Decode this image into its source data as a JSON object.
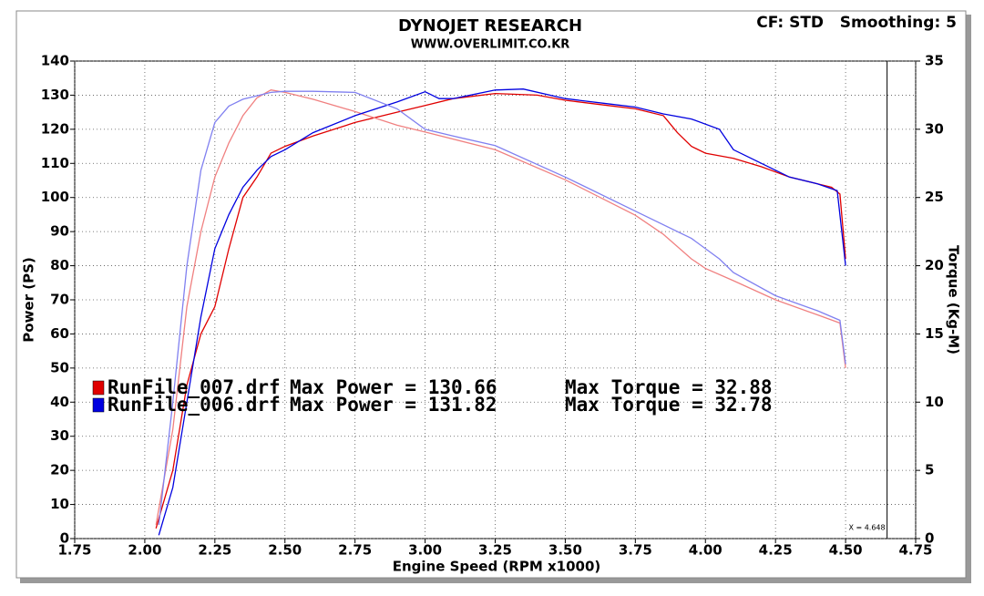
{
  "chart_data": {
    "type": "line",
    "title": "DYNOJET RESEARCH",
    "subtitle": "WWW.OVERLIMIT.CO.KR",
    "settings_text": "CF: STD   Smoothing: 5",
    "x_label": "Engine Speed (RPM x1000)",
    "y_label": "Power (PS)",
    "y2_label": "Torque (Kg-M)",
    "xlim": [
      1.75,
      4.75
    ],
    "xticks": [
      1.75,
      {
        "value": 2,
        "label": "2.00"
      },
      2.25,
      {
        "value": 2.5,
        "label": "2.50"
      },
      2.75,
      {
        "value": 3,
        "label": "3.00"
      },
      3.25,
      {
        "value": 3.5,
        "label": "3.50"
      },
      3.75,
      {
        "value": 4,
        "label": "4.00"
      },
      4.25,
      {
        "value": 4.5,
        "label": "4.50"
      },
      4.75
    ],
    "ylim": [
      0,
      140
    ],
    "yticks": [
      0,
      10,
      20,
      30,
      40,
      50,
      60,
      70,
      80,
      90,
      100,
      110,
      120,
      130,
      140
    ],
    "y2lim": [
      0,
      35
    ],
    "y2ticks": [
      0,
      5,
      10,
      15,
      20,
      25,
      30,
      35
    ],
    "grid": true,
    "cursor": {
      "value": 4.648,
      "label": "X = 4.648"
    },
    "legend": [
      {
        "file": "RunFile_007.drf",
        "max_power": "Max Power = 130.66",
        "max_torque": "Max Torque = 32.88",
        "color": "#e00000"
      },
      {
        "file": "RunFile_006.drf",
        "max_power": "Max Power = 131.82",
        "max_torque": "Max Torque = 32.78",
        "color": "#0000e0"
      }
    ],
    "series": [
      {
        "name": "RunFile_007.drf",
        "color": "#e00000",
        "x": [
          2.04,
          2.1,
          2.15,
          2.2,
          2.25,
          2.3,
          2.35,
          2.4,
          2.45,
          2.5,
          2.6,
          2.75,
          2.9,
          3.0,
          3.1,
          3.25,
          3.4,
          3.5,
          3.65,
          3.75,
          3.85,
          3.9,
          3.95,
          4.0,
          4.1,
          4.2,
          4.3,
          4.4,
          4.45,
          4.48,
          4.5
        ],
        "values": [
          3,
          20,
          45,
          60,
          68,
          85,
          100,
          106,
          113,
          115,
          118,
          122,
          125,
          127,
          129,
          130.5,
          130,
          128.5,
          127,
          126,
          124,
          119,
          115,
          113,
          111.5,
          109,
          106,
          104,
          103,
          101,
          82
        ]
      },
      {
        "name": "RunFile_007.drf",
        "color": "#f08080",
        "axis": "y2",
        "x": [
          2.04,
          2.1,
          2.15,
          2.2,
          2.25,
          2.3,
          2.35,
          2.4,
          2.45,
          2.5,
          2.6,
          2.75,
          2.9,
          3.0,
          3.25,
          3.5,
          3.75,
          3.85,
          3.95,
          4.0,
          4.1,
          4.25,
          4.4,
          4.48,
          4.5
        ],
        "values": [
          1,
          8,
          17,
          22.5,
          26.5,
          29,
          31,
          32.3,
          32.88,
          32.7,
          32.2,
          31.3,
          30.3,
          29.8,
          28.5,
          26.3,
          23.7,
          22.3,
          20.5,
          19.8,
          18.9,
          17.5,
          16.4,
          15.8,
          12.5
        ]
      },
      {
        "name": "RunFile_006.drf",
        "color": "#0000e0",
        "x": [
          2.05,
          2.1,
          2.15,
          2.2,
          2.25,
          2.3,
          2.35,
          2.4,
          2.45,
          2.5,
          2.6,
          2.75,
          2.9,
          3.0,
          3.05,
          3.1,
          3.25,
          3.35,
          3.5,
          3.65,
          3.75,
          3.85,
          3.95,
          4.05,
          4.1,
          4.2,
          4.3,
          4.4,
          4.47,
          4.5
        ],
        "values": [
          1,
          15,
          40,
          65,
          85,
          95,
          103,
          108,
          112,
          114,
          119,
          124,
          128,
          131,
          129,
          129,
          131.5,
          131.8,
          129,
          127.5,
          126.5,
          124.5,
          123,
          120,
          114,
          110,
          106,
          104,
          102,
          80
        ]
      },
      {
        "name": "RunFile_006.drf",
        "color": "#8080f0",
        "axis": "y2",
        "x": [
          2.05,
          2.1,
          2.15,
          2.2,
          2.25,
          2.3,
          2.35,
          2.45,
          2.5,
          2.6,
          2.75,
          2.9,
          3.0,
          3.1,
          3.25,
          3.5,
          3.75,
          3.95,
          4.05,
          4.1,
          4.25,
          4.4,
          4.48,
          4.5
        ],
        "values": [
          1,
          10,
          20,
          27,
          30.5,
          31.7,
          32.2,
          32.7,
          32.78,
          32.78,
          32.7,
          31.5,
          30,
          29.5,
          28.8,
          26.5,
          24,
          22,
          20.5,
          19.5,
          17.8,
          16.7,
          16,
          12.8
        ]
      }
    ]
  }
}
